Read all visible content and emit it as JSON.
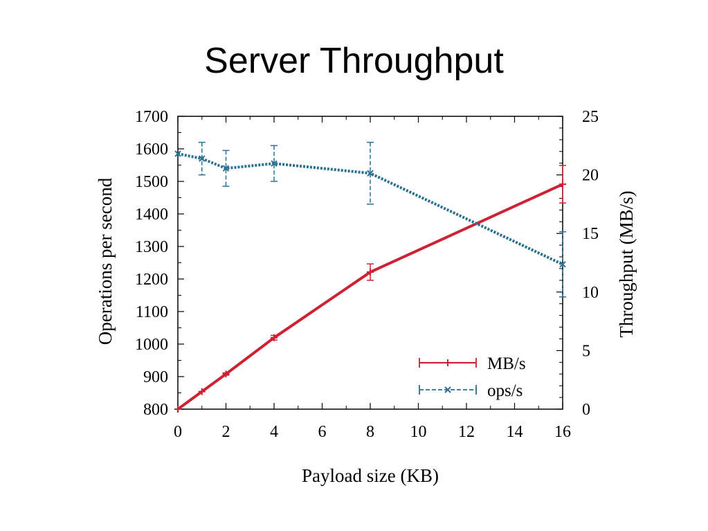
{
  "slide": {
    "title": "Server Throughput"
  },
  "chart_data": {
    "type": "line",
    "xlabel": "Payload size (KB)",
    "ylabel_left": "Operations per second",
    "ylabel_right": "Throughput (MB/s)",
    "xlim": [
      0,
      16
    ],
    "ylim_left": [
      800,
      1700
    ],
    "ylim_right": [
      0,
      25
    ],
    "x_ticks": [
      0,
      2,
      4,
      6,
      8,
      10,
      12,
      14,
      16
    ],
    "y_ticks_left": [
      800,
      900,
      1000,
      1100,
      1200,
      1300,
      1400,
      1500,
      1600,
      1700
    ],
    "y_ticks_right": [
      0,
      5,
      10,
      15,
      20,
      25
    ],
    "grid": false,
    "legend": {
      "placement": "bottom-right"
    },
    "series": [
      {
        "name": "MB/s",
        "axis": "right",
        "color": "#cc2233",
        "x": [
          0,
          1,
          2,
          4,
          8,
          16
        ],
        "y": [
          0,
          1.5,
          3.0,
          6.1,
          11.7,
          19.2
        ],
        "err": [
          0,
          0,
          0.1,
          0.2,
          0.7,
          1.6
        ]
      },
      {
        "name": "ops/s",
        "axis": "left",
        "color": "#2a7090",
        "x": [
          0,
          1,
          2,
          4,
          8,
          16
        ],
        "y": [
          1585,
          1570,
          1540,
          1555,
          1525,
          1245
        ],
        "err": [
          0,
          50,
          55,
          55,
          95,
          100
        ]
      }
    ]
  }
}
